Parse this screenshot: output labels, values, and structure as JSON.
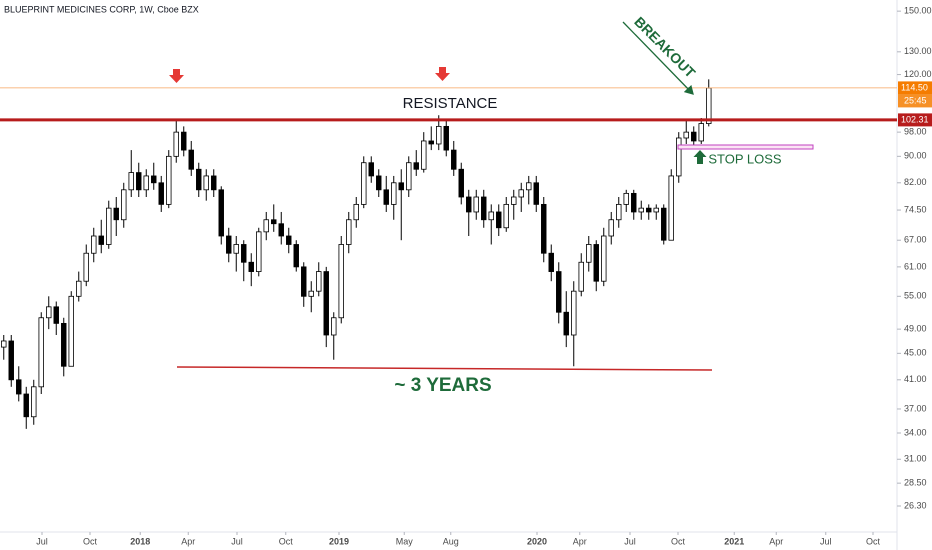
{
  "chart_data": {
    "type": "candlestick",
    "title": "BLUEPRINT MEDICINES CORP, 1W, Cboe BZX",
    "candles": {
      "open": [
        46,
        47,
        41,
        39,
        36,
        40,
        51,
        53,
        50,
        43,
        55,
        58,
        64,
        68,
        66,
        75,
        72,
        80,
        85,
        80,
        84,
        82,
        76,
        90,
        98,
        92,
        86,
        80,
        84,
        80,
        68,
        64,
        66,
        62,
        60,
        69,
        72,
        71,
        68,
        66,
        61,
        55,
        56,
        60,
        48,
        51,
        66,
        72,
        76,
        88,
        84,
        80,
        76,
        82,
        80,
        88,
        86,
        95,
        94,
        100,
        92,
        86,
        78,
        74,
        78,
        72,
        74,
        70,
        76,
        78,
        80,
        82,
        76,
        64,
        60,
        52,
        48,
        56,
        62,
        66,
        58,
        68,
        72,
        76,
        79,
        74,
        75,
        74,
        75,
        67,
        84,
        96,
        98,
        95,
        101
      ],
      "high": [
        48,
        48,
        43,
        40,
        41,
        52,
        55,
        54,
        51,
        56,
        60,
        66,
        70,
        72,
        77,
        78,
        82,
        92,
        88,
        86,
        88,
        84,
        92,
        102,
        100,
        95,
        88,
        86,
        86,
        81,
        70,
        68,
        67,
        64,
        70,
        74,
        76,
        74,
        70,
        67,
        62,
        58,
        62,
        61,
        52,
        68,
        74,
        78,
        90,
        90,
        86,
        84,
        84,
        86,
        90,
        92,
        98,
        100,
        104,
        102,
        95,
        88,
        80,
        80,
        80,
        76,
        76,
        78,
        80,
        82,
        84,
        84,
        78,
        66,
        62,
        56,
        58,
        64,
        68,
        67,
        70,
        74,
        78,
        80,
        80,
        77,
        76,
        76,
        76,
        86,
        98,
        102,
        100,
        103,
        118
      ],
      "low": [
        44,
        40,
        38,
        34.5,
        35,
        39,
        49,
        48,
        41.5,
        43,
        54,
        57,
        62,
        64,
        65,
        68,
        70,
        78,
        78,
        78,
        80,
        74,
        75,
        88,
        90,
        84,
        78,
        77,
        78,
        66,
        62,
        60,
        58,
        57,
        59,
        67,
        69,
        66,
        64,
        60,
        53,
        52,
        55,
        46,
        44,
        50,
        64,
        70,
        75,
        82,
        78,
        74,
        72,
        67,
        78,
        84,
        85,
        92,
        92,
        90,
        84,
        76,
        68,
        72,
        70,
        66,
        68,
        69,
        72,
        74,
        76,
        74,
        62,
        58,
        50,
        46,
        43,
        55,
        60,
        56,
        57,
        66,
        70,
        74,
        72,
        72,
        72,
        72,
        66,
        67,
        82,
        94,
        93,
        94,
        100
      ],
      "close": [
        47,
        41,
        39,
        36,
        40,
        51,
        53,
        50,
        43,
        55,
        58,
        64,
        68,
        66,
        75,
        72,
        80,
        85,
        80,
        84,
        82,
        76,
        90,
        98,
        92,
        86,
        80,
        84,
        80,
        68,
        64,
        66,
        62,
        60,
        69,
        72,
        71,
        68,
        66,
        61,
        55,
        56,
        60,
        48,
        51,
        66,
        72,
        76,
        88,
        84,
        80,
        76,
        82,
        80,
        88,
        86,
        95,
        94,
        100,
        92,
        86,
        78,
        74,
        78,
        72,
        74,
        70,
        76,
        78,
        80,
        82,
        76,
        64,
        60,
        52,
        48,
        56,
        62,
        66,
        58,
        68,
        72,
        76,
        79,
        74,
        75,
        74,
        75,
        67,
        84,
        96,
        98,
        95,
        101,
        114.5
      ]
    },
    "up_color": "#ffffff",
    "down_color": "#000000",
    "xlim": [
      -0.5,
      119.1
    ],
    "xticks": [
      {
        "value": 5.1,
        "label": "Jul"
      },
      {
        "value": 11.5,
        "label": "Oct"
      },
      {
        "value": 18.2,
        "label": "2018"
      },
      {
        "value": 24.6,
        "label": "Apr"
      },
      {
        "value": 31.1,
        "label": "Jul"
      },
      {
        "value": 37.6,
        "label": "Oct"
      },
      {
        "value": 44.7,
        "label": "2019"
      },
      {
        "value": 53.4,
        "label": "May"
      },
      {
        "value": 59.6,
        "label": "Aug"
      },
      {
        "value": 71.1,
        "label": "2020"
      },
      {
        "value": 76.8,
        "label": "Apr"
      },
      {
        "value": 83.5,
        "label": "Jul"
      },
      {
        "value": 89.9,
        "label": "Oct"
      },
      {
        "value": 97.4,
        "label": "2021"
      },
      {
        "value": 103,
        "label": "Apr"
      },
      {
        "value": 109.6,
        "label": "Jul"
      },
      {
        "value": 115.9,
        "label": "Oct"
      }
    ],
    "ylim": [
      24,
      156
    ],
    "log_scale": true,
    "grid": false,
    "yticks": [
      {
        "value": 150,
        "label": "150.00"
      },
      {
        "value": 130,
        "label": "130.00"
      },
      {
        "value": 120,
        "label": "120.00"
      },
      {
        "value": 98,
        "label": "98.00"
      },
      {
        "value": 90,
        "label": "90.00"
      },
      {
        "value": 82,
        "label": "82.00"
      },
      {
        "value": 74.5,
        "label": "74.50"
      },
      {
        "value": 67,
        "label": "67.00"
      },
      {
        "value": 61,
        "label": "61.00"
      },
      {
        "value": 55,
        "label": "55.00"
      },
      {
        "value": 49,
        "label": "49.00"
      },
      {
        "value": 45,
        "label": "45.00"
      },
      {
        "value": 41,
        "label": "41.00"
      },
      {
        "value": 37,
        "label": "37.00"
      },
      {
        "value": 34,
        "label": "34.00"
      },
      {
        "value": 31,
        "label": "31.00"
      },
      {
        "value": 28.5,
        "label": "28.50"
      },
      {
        "value": 26.3,
        "label": "26.30"
      }
    ],
    "last_price": {
      "value": 114.5,
      "label": "114.50"
    },
    "countdown": "25:45",
    "resistance_level": 102.31,
    "annotations": {
      "resistance": "RESISTANCE",
      "breakout": "BREAKOUT",
      "span": "~ 3 YEARS",
      "stop_loss": "STOP LOSS"
    }
  }
}
